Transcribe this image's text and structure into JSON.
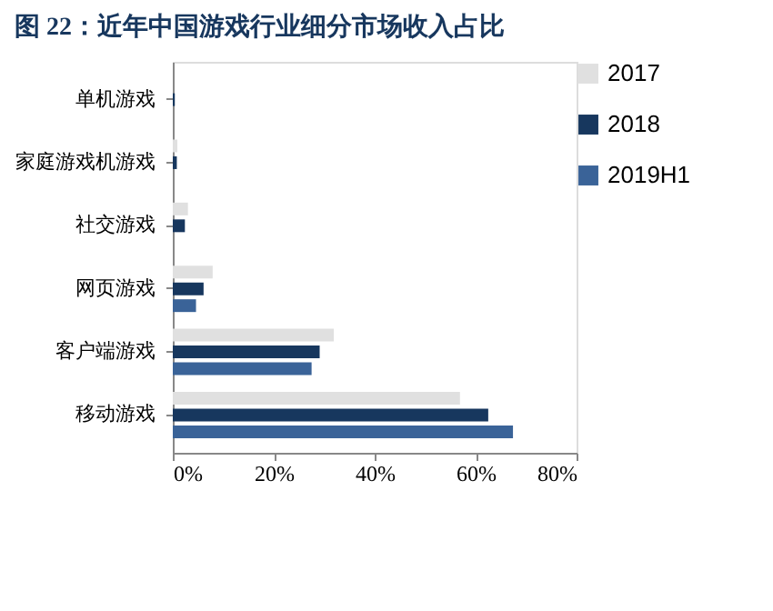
{
  "chart_data": {
    "type": "bar",
    "orientation": "horizontal",
    "title": "图 22：近年中国游戏行业细分市场收入占比",
    "categories": [
      "单机游戏",
      "家庭游戏机游戏",
      "社交游戏",
      "网页游戏",
      "客户端游戏",
      "移动游戏"
    ],
    "series": [
      {
        "name": "2017",
        "color": "#e0e0e0",
        "values": [
          null,
          0.9,
          3.0,
          7.9,
          31.9,
          56.9
        ]
      },
      {
        "name": "2018",
        "color": "#17375e",
        "values": [
          0.4,
          0.8,
          2.4,
          6.1,
          29.1,
          62.5
        ]
      },
      {
        "name": "2019H1",
        "color": "#3a6398",
        "values": [
          null,
          null,
          null,
          4.6,
          27.5,
          67.4
        ]
      }
    ],
    "xlim": [
      0,
      80
    ],
    "xticks": [
      {
        "value": 0,
        "label": "0%"
      },
      {
        "value": 20,
        "label": "20%"
      },
      {
        "value": 40,
        "label": "40%"
      },
      {
        "value": 60,
        "label": "60%"
      },
      {
        "value": 80,
        "label": "80%"
      }
    ],
    "grid": false,
    "legend": "right"
  }
}
